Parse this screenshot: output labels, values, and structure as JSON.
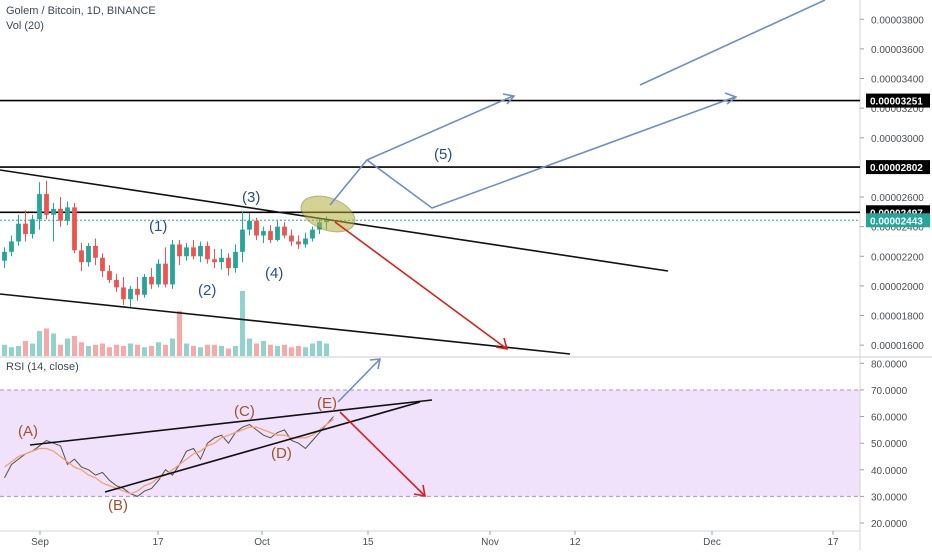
{
  "header": {
    "title": "Golem / Bitcoin, 1D, BINANCE",
    "vol_label": "Vol (20)",
    "rsi_label": "RSI (14, close)"
  },
  "colors": {
    "up": "#26a69a",
    "down": "#ef5350",
    "arrow_blue": "#6f8fc2",
    "arrow_red": "#d92020",
    "wave_blue": "#2a4f8a",
    "wave_brown": "#a0522d",
    "rsi_band": "#f0e2fa",
    "rsi_line": "#505050",
    "rsi_ma": "#f4a070",
    "ellipse": "#b2b03c"
  },
  "chart_data": [
    {
      "type": "candlestick",
      "title": "Golem / Bitcoin, 1D, BINANCE",
      "ylim": [
        1.52e-05,
        3.93e-05
      ],
      "y_ticks": [
        "0.00003800",
        "0.00003600",
        "0.00003400",
        "0.00003200",
        "0.00003000",
        "0.00002600",
        "0.00002400",
        "0.00002200",
        "0.00002000",
        "0.00001800",
        "0.00001600"
      ],
      "x_ticks": [
        "Sep",
        "17",
        "Oct",
        "15",
        "Nov",
        "12",
        "Dec",
        "17"
      ],
      "price_levels": [
        {
          "label": "0.00003251",
          "value": 3.251e-05
        },
        {
          "label": "0.00002802",
          "value": 2.802e-05
        },
        {
          "label": "0.00002497",
          "value": 2.497e-05
        }
      ],
      "last_price": {
        "label": "0.00002443",
        "value": 2.443e-05
      },
      "wave_labels": [
        "(1)",
        "(2)",
        "(3)",
        "(4)",
        "(5)"
      ],
      "candles": [
        {
          "o": 2170,
          "h": 2260,
          "l": 2120,
          "c": 2230
        },
        {
          "o": 2230,
          "h": 2340,
          "l": 2200,
          "c": 2300
        },
        {
          "o": 2300,
          "h": 2480,
          "l": 2270,
          "c": 2420
        },
        {
          "o": 2420,
          "h": 2510,
          "l": 2300,
          "c": 2350
        },
        {
          "o": 2350,
          "h": 2480,
          "l": 2320,
          "c": 2450
        },
        {
          "o": 2450,
          "h": 2700,
          "l": 2380,
          "c": 2620
        },
        {
          "o": 2620,
          "h": 2710,
          "l": 2450,
          "c": 2480
        },
        {
          "o": 2480,
          "h": 2560,
          "l": 2300,
          "c": 2520
        },
        {
          "o": 2520,
          "h": 2600,
          "l": 2400,
          "c": 2440
        },
        {
          "o": 2440,
          "h": 2570,
          "l": 2410,
          "c": 2530
        },
        {
          "o": 2530,
          "h": 2560,
          "l": 2220,
          "c": 2240
        },
        {
          "o": 2240,
          "h": 2290,
          "l": 2100,
          "c": 2160
        },
        {
          "o": 2160,
          "h": 2290,
          "l": 2130,
          "c": 2270
        },
        {
          "o": 2270,
          "h": 2320,
          "l": 2140,
          "c": 2190
        },
        {
          "o": 2190,
          "h": 2220,
          "l": 2060,
          "c": 2100
        },
        {
          "o": 2100,
          "h": 2140,
          "l": 2020,
          "c": 2040
        },
        {
          "o": 2040,
          "h": 2080,
          "l": 1960,
          "c": 1990
        },
        {
          "o": 1990,
          "h": 2060,
          "l": 1870,
          "c": 1910
        },
        {
          "o": 1910,
          "h": 2000,
          "l": 1850,
          "c": 1980
        },
        {
          "o": 1980,
          "h": 2060,
          "l": 1900,
          "c": 1940
        },
        {
          "o": 1940,
          "h": 2080,
          "l": 1920,
          "c": 2060
        },
        {
          "o": 2060,
          "h": 2120,
          "l": 1980,
          "c": 2010
        },
        {
          "o": 2010,
          "h": 2180,
          "l": 1990,
          "c": 2150
        },
        {
          "o": 2150,
          "h": 2260,
          "l": 1990,
          "c": 2010
        },
        {
          "o": 2010,
          "h": 2310,
          "l": 1980,
          "c": 2280
        },
        {
          "o": 2280,
          "h": 2310,
          "l": 2140,
          "c": 2200
        },
        {
          "o": 2200,
          "h": 2290,
          "l": 2170,
          "c": 2260
        },
        {
          "o": 2260,
          "h": 2310,
          "l": 2180,
          "c": 2200
        },
        {
          "o": 2200,
          "h": 2300,
          "l": 2160,
          "c": 2270
        },
        {
          "o": 2270,
          "h": 2300,
          "l": 2150,
          "c": 2180
        },
        {
          "o": 2180,
          "h": 2250,
          "l": 2120,
          "c": 2160
        },
        {
          "o": 2160,
          "h": 2250,
          "l": 2110,
          "c": 2190
        },
        {
          "o": 2190,
          "h": 2220,
          "l": 2070,
          "c": 2120
        },
        {
          "o": 2120,
          "h": 2280,
          "l": 2090,
          "c": 2230
        },
        {
          "o": 2230,
          "h": 2500,
          "l": 2160,
          "c": 2380
        },
        {
          "o": 2380,
          "h": 2490,
          "l": 2340,
          "c": 2440
        },
        {
          "o": 2440,
          "h": 2460,
          "l": 2310,
          "c": 2340
        },
        {
          "o": 2340,
          "h": 2400,
          "l": 2290,
          "c": 2370
        },
        {
          "o": 2370,
          "h": 2410,
          "l": 2290,
          "c": 2310
        },
        {
          "o": 2310,
          "h": 2440,
          "l": 2300,
          "c": 2400
        },
        {
          "o": 2400,
          "h": 2430,
          "l": 2320,
          "c": 2340
        },
        {
          "o": 2340,
          "h": 2380,
          "l": 2270,
          "c": 2300
        },
        {
          "o": 2300,
          "h": 2340,
          "l": 2250,
          "c": 2280
        },
        {
          "o": 2280,
          "h": 2360,
          "l": 2260,
          "c": 2320
        },
        {
          "o": 2320,
          "h": 2400,
          "l": 2300,
          "c": 2380
        },
        {
          "o": 2380,
          "h": 2460,
          "l": 2350,
          "c": 2430
        },
        {
          "o": 2430,
          "h": 2470,
          "l": 2380,
          "c": 2443
        }
      ],
      "volume": [
        9,
        7,
        8,
        12,
        10,
        20,
        22,
        18,
        9,
        14,
        16,
        11,
        8,
        9,
        10,
        7,
        9,
        8,
        10,
        9,
        7,
        8,
        11,
        9,
        14,
        36,
        10,
        8,
        7,
        9,
        9,
        8,
        6,
        8,
        52,
        14,
        10,
        12,
        9,
        8,
        9,
        7,
        8,
        7,
        10,
        12,
        10
      ]
    },
    {
      "type": "line",
      "title": "RSI (14, close)",
      "ylim": [
        17,
        82
      ],
      "y_ticks": [
        "80.0000",
        "70.0000",
        "60.0000",
        "50.0000",
        "40.0000",
        "30.0000",
        "20.0000"
      ],
      "band": [
        30,
        70
      ],
      "wave_labels": [
        "(A)",
        "(B)",
        "(C)",
        "(D)",
        "(E)"
      ],
      "series": [
        {
          "values": [
            37,
            42,
            44,
            46,
            47,
            49,
            51,
            50,
            49,
            42,
            44,
            41,
            40,
            38,
            39,
            36,
            34,
            33,
            31,
            30,
            32,
            33,
            36,
            40,
            38,
            42,
            47,
            48,
            44,
            50,
            52,
            53,
            50,
            54,
            56,
            57,
            55,
            53,
            52,
            54,
            55,
            51,
            50,
            48,
            51,
            54,
            57,
            60
          ]
        },
        {
          "values": [
            41,
            43,
            45,
            46,
            47,
            48,
            48,
            47,
            45,
            43,
            41,
            40,
            38,
            37,
            35,
            34,
            33,
            32,
            31,
            32,
            34,
            35,
            37,
            38,
            40,
            42,
            44,
            46,
            47,
            49,
            50,
            52,
            53,
            54,
            55,
            56,
            56,
            55,
            54,
            53,
            53,
            52,
            52,
            52,
            53,
            55,
            57,
            59
          ]
        }
      ]
    }
  ]
}
